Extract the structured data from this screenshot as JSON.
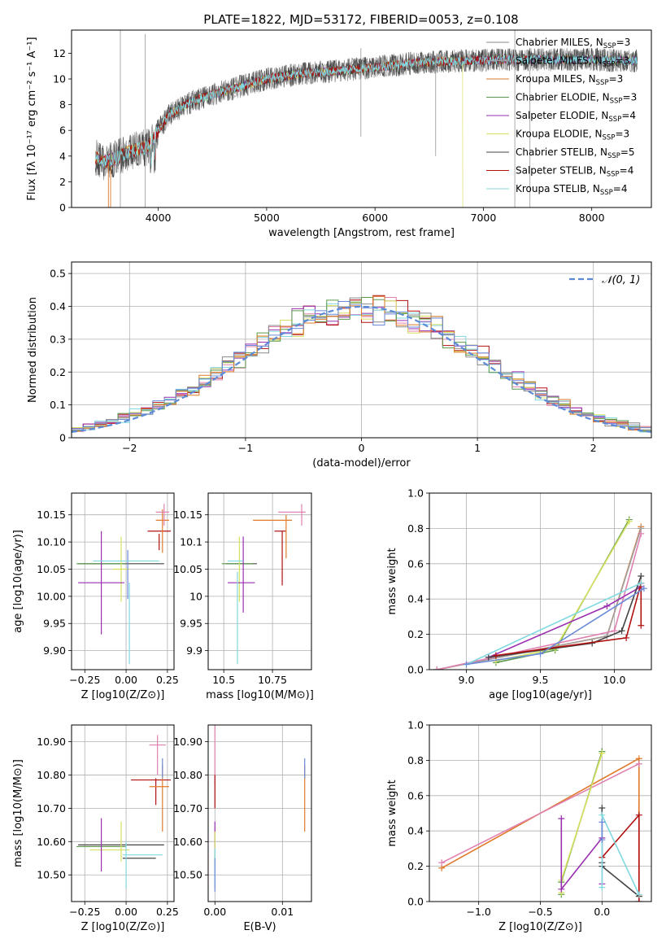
{
  "figure": {
    "title": "PLATE=1822, MJD=53172, FIBERID=0053, z=0.108"
  },
  "legend_ssp": [
    {
      "label": "Chabrier MILES, N",
      "sub": "SSP",
      "tail": "=3",
      "color": "#888888"
    },
    {
      "label": "Salpeter MILES, N",
      "sub": "SSP",
      "tail": "=3",
      "color": "#a0a0a0"
    },
    {
      "label": "Kroupa MILES, N",
      "sub": "SSP",
      "tail": "=3",
      "color": "#e07a2a"
    },
    {
      "label": "Chabrier ELODIE, N",
      "sub": "SSP",
      "tail": "=3",
      "color": "#5a9a4a"
    },
    {
      "label": "Salpeter ELODIE, N",
      "sub": "SSP",
      "tail": "=4",
      "color": "#9a2fb0"
    },
    {
      "label": "Kroupa ELODIE, N",
      "sub": "SSP",
      "tail": "=3",
      "color": "#d8e060"
    },
    {
      "label": "Chabrier STELIB, N",
      "sub": "SSP",
      "tail": "=5",
      "color": "#444444"
    },
    {
      "label": "Salpeter STELIB, N",
      "sub": "SSP",
      "tail": "=4",
      "color": "#b01010"
    },
    {
      "label": "Kroupa STELIB, N",
      "sub": "SSP",
      "tail": "=4",
      "color": "#80d8e0"
    }
  ],
  "chart_data": [
    {
      "id": "spectrum",
      "type": "line",
      "xlabel": "wavelength [Angstrom, rest frame]",
      "ylabel": "Flux [fλ 10⁻¹⁷ erg cm⁻² s⁻¹ A⁻¹]",
      "xlim": [
        3200,
        8550
      ],
      "ylim": [
        0,
        13.8
      ],
      "xticks": [
        4000,
        5000,
        6000,
        7000,
        8000
      ],
      "yticks": [
        0,
        2,
        4,
        6,
        8,
        10,
        12
      ],
      "continuum_x": [
        3420,
        3500,
        3600,
        3700,
        3800,
        3900,
        4000,
        4100,
        4300,
        4500,
        4800,
        5000,
        5300,
        5600,
        6000,
        6400,
        6800,
        7200,
        7600,
        8000,
        8400
      ],
      "continuum_y": [
        3.9,
        3.5,
        3.8,
        4.2,
        4.5,
        4.7,
        6.0,
        7.2,
        8.2,
        8.8,
        9.5,
        10.0,
        10.4,
        10.6,
        10.9,
        11.3,
        11.4,
        11.5,
        11.5,
        11.5,
        11.4
      ]
    },
    {
      "id": "residuals",
      "type": "histogram",
      "xlabel": "(data-model)/error",
      "ylabel": "Normed distribution",
      "xlim": [
        -2.5,
        2.5
      ],
      "ylim": [
        0,
        0.535
      ],
      "xticks": [
        -2,
        -1,
        0,
        1,
        2
      ],
      "yticks": [
        0.0,
        0.1,
        0.2,
        0.3,
        0.4,
        0.5
      ],
      "legend": "𝒩(0, 1)",
      "bin_width": 0.1
    },
    {
      "id": "age_vs_Z",
      "type": "errorbar",
      "xlabel": "Z [log10(Z/Z⊙)]",
      "ylabel": "age  [log10(age/yr)]",
      "xlim": [
        -0.33,
        0.29
      ],
      "ylim": [
        9.865,
        10.19
      ],
      "xticks": [
        -0.25,
        0.0,
        0.25
      ],
      "yticks": [
        9.9,
        9.95,
        10.0,
        10.05,
        10.1,
        10.15
      ],
      "points": [
        {
          "x": -0.03,
          "xerr": 0.26,
          "y": 10.06,
          "yerr": 0.0,
          "c": "#444444"
        },
        {
          "x": -0.15,
          "xerr": 0.15,
          "y": 10.06,
          "yerr": 0.0,
          "c": "#5a9a4a"
        },
        {
          "x": -0.03,
          "xerr": 0.05,
          "y": 10.05,
          "yerr": 0.06,
          "c": "#d8e060"
        },
        {
          "x": -0.15,
          "xerr": 0.14,
          "y": 10.025,
          "yerr": 0.095,
          "c": "#9a2fb0"
        },
        {
          "x": 0.01,
          "xerr": 0.0,
          "y": 10.04,
          "yerr": 0.045,
          "c": "#6a8ad8"
        },
        {
          "x": 0.02,
          "xerr": 0.0,
          "y": 9.95,
          "yerr": 0.075,
          "c": "#80d8e0"
        },
        {
          "x": 0.0,
          "xerr": 0.2,
          "y": 10.065,
          "yerr": 0.0,
          "c": "#80d8e0"
        },
        {
          "x": 0.2,
          "xerr": 0.07,
          "y": 10.12,
          "yerr": 0.0,
          "c": "#b01010"
        },
        {
          "x": 0.2,
          "xerr": 0.0,
          "y": 10.1,
          "yerr": 0.015,
          "c": "#b01010"
        },
        {
          "x": 0.22,
          "xerr": 0.04,
          "y": 10.14,
          "yerr": 0.0,
          "c": "#e07a2a"
        },
        {
          "x": 0.22,
          "xerr": 0.0,
          "y": 10.12,
          "yerr": 0.04,
          "c": "#e07a2a"
        },
        {
          "x": 0.22,
          "xerr": 0.04,
          "y": 10.155,
          "yerr": 0.0,
          "c": "#e080b0"
        },
        {
          "x": 0.23,
          "xerr": 0.0,
          "y": 10.15,
          "yerr": 0.02,
          "c": "#e080b0"
        }
      ]
    },
    {
      "id": "age_vs_mass",
      "type": "errorbar",
      "xlabel": "mass [log10(M/M⊙)]",
      "ylabel": "",
      "xlim": [
        10.42,
        10.95
      ],
      "ylim": [
        9.865,
        10.19
      ],
      "xticks": [
        10.5,
        10.75
      ],
      "yticks": [
        9.9,
        9.95,
        10.0,
        10.05,
        10.1,
        10.15
      ],
      "points": [
        {
          "x": 10.59,
          "xerr": 0.08,
          "y": 10.06,
          "yerr": 0.0,
          "c": "#444444"
        },
        {
          "x": 10.57,
          "xerr": 0.08,
          "y": 10.06,
          "yerr": 0.0,
          "c": "#5a9a4a"
        },
        {
          "x": 10.58,
          "xerr": 0.0,
          "y": 10.05,
          "yerr": 0.06,
          "c": "#d8e060"
        },
        {
          "x": 10.59,
          "xerr": 0.07,
          "y": 10.025,
          "yerr": 0.0,
          "c": "#9a2fb0"
        },
        {
          "x": 10.6,
          "xerr": 0.0,
          "y": 10.04,
          "yerr": 0.07,
          "c": "#9a2fb0"
        },
        {
          "x": 10.57,
          "xerr": 0.0,
          "y": 9.96,
          "yerr": 0.085,
          "c": "#80d8e0"
        },
        {
          "x": 10.56,
          "xerr": 0.04,
          "y": 10.065,
          "yerr": 0.0,
          "c": "#80d8e0"
        },
        {
          "x": 10.79,
          "xerr": 0.03,
          "y": 10.12,
          "yerr": 0.0,
          "c": "#b01010"
        },
        {
          "x": 10.8,
          "xerr": 0.0,
          "y": 10.07,
          "yerr": 0.05,
          "c": "#b01010"
        },
        {
          "x": 10.75,
          "xerr": 0.1,
          "y": 10.14,
          "yerr": 0.0,
          "c": "#e07a2a"
        },
        {
          "x": 10.82,
          "xerr": 0.0,
          "y": 10.11,
          "yerr": 0.04,
          "c": "#e07a2a"
        },
        {
          "x": 10.85,
          "xerr": 0.07,
          "y": 10.155,
          "yerr": 0.0,
          "c": "#e080b0"
        },
        {
          "x": 10.9,
          "xerr": 0.0,
          "y": 10.15,
          "yerr": 0.02,
          "c": "#e080b0"
        }
      ]
    },
    {
      "id": "weight_vs_age",
      "type": "line",
      "xlabel": "age  [log10(age/yr)]",
      "ylabel": "mass weight",
      "xlim": [
        8.75,
        10.25
      ],
      "ylim": [
        0,
        1.0
      ],
      "xticks": [
        9.0,
        9.5,
        10.0
      ],
      "yticks": [
        0.0,
        0.2,
        0.4,
        0.6,
        0.8,
        1.0
      ],
      "series": [
        {
          "c": "#5a9a4a",
          "x": [
            9.2,
            9.6,
            10.1
          ],
          "y": [
            0.04,
            0.11,
            0.85
          ]
        },
        {
          "c": "#d8e060",
          "x": [
            9.2,
            9.6,
            10.1
          ],
          "y": [
            0.05,
            0.12,
            0.84
          ]
        },
        {
          "c": "#e07a2a",
          "x": [
            8.8,
            9.95,
            10.18
          ],
          "y": [
            0.0,
            0.19,
            0.81
          ]
        },
        {
          "c": "#a0a0a0",
          "x": [
            8.8,
            9.95,
            10.18
          ],
          "y": [
            0.0,
            0.19,
            0.8
          ]
        },
        {
          "c": "#e080b0",
          "x": [
            8.8,
            10.0,
            10.18
          ],
          "y": [
            0.0,
            0.22,
            0.77
          ]
        },
        {
          "c": "#9a2fb0",
          "x": [
            9.15,
            9.95,
            10.18
          ],
          "y": [
            0.07,
            0.36,
            0.47
          ]
        },
        {
          "c": "#444444",
          "x": [
            9.15,
            9.85,
            10.05,
            10.18
          ],
          "y": [
            0.07,
            0.15,
            0.22,
            0.53
          ]
        },
        {
          "c": "#b01010",
          "x": [
            9.2,
            10.08,
            10.18,
            10.18
          ],
          "y": [
            0.08,
            0.18,
            0.49,
            0.25
          ]
        },
        {
          "c": "#80d8e0",
          "x": [
            9.0,
            10.18
          ],
          "y": [
            0.03,
            0.49
          ]
        },
        {
          "c": "#6a8ad8",
          "x": [
            9.0,
            9.5,
            10.2
          ],
          "y": [
            0.03,
            0.09,
            0.46
          ]
        }
      ]
    },
    {
      "id": "mass_vs_Z",
      "type": "errorbar",
      "xlabel": "Z [log10(Z/Z⊙)]",
      "ylabel": "mass [log10(M/M⊙)]",
      "xlim": [
        -0.33,
        0.29
      ],
      "ylim": [
        10.42,
        10.95
      ],
      "xticks": [
        -0.25,
        0.0,
        0.25
      ],
      "yticks": [
        10.5,
        10.6,
        10.7,
        10.8,
        10.9
      ],
      "points": [
        {
          "x": -0.03,
          "xerr": 0.26,
          "y": 10.59,
          "yerr": 0.0,
          "c": "#444444"
        },
        {
          "x": -0.15,
          "xerr": 0.15,
          "y": 10.585,
          "yerr": 0.0,
          "c": "#5a9a4a"
        },
        {
          "x": -0.03,
          "xerr": 0.0,
          "y": 10.6,
          "yerr": 0.06,
          "c": "#d8e060"
        },
        {
          "x": -0.1,
          "xerr": 0.12,
          "y": 10.575,
          "yerr": 0.0,
          "c": "#d8e060"
        },
        {
          "x": -0.15,
          "xerr": 0.0,
          "y": 10.59,
          "yerr": 0.08,
          "c": "#9a2fb0"
        },
        {
          "x": 0.08,
          "xerr": 0.1,
          "y": 10.55,
          "yerr": 0.0,
          "c": "#444444"
        },
        {
          "x": 0.0,
          "xerr": 0.0,
          "y": 10.53,
          "yerr": 0.07,
          "c": "#80d8e0"
        },
        {
          "x": 0.1,
          "xerr": 0.12,
          "y": 10.56,
          "yerr": 0.0,
          "c": "#80d8e0"
        },
        {
          "x": 0.15,
          "xerr": 0.12,
          "y": 10.785,
          "yerr": 0.0,
          "c": "#b01010"
        },
        {
          "x": 0.18,
          "xerr": 0.0,
          "y": 10.75,
          "yerr": 0.04,
          "c": "#b01010"
        },
        {
          "x": 0.2,
          "xerr": 0.06,
          "y": 10.765,
          "yerr": 0.0,
          "c": "#e07a2a"
        },
        {
          "x": 0.22,
          "xerr": 0.0,
          "y": 10.73,
          "yerr": 0.1,
          "c": "#e07a2a"
        },
        {
          "x": 0.19,
          "xerr": 0.05,
          "y": 10.89,
          "yerr": 0.0,
          "c": "#e080b0"
        },
        {
          "x": 0.19,
          "xerr": 0.0,
          "y": 10.86,
          "yerr": 0.06,
          "c": "#e080b0"
        },
        {
          "x": 0.22,
          "xerr": 0.0,
          "y": 10.82,
          "yerr": 0.03,
          "c": "#6a8ad8"
        }
      ]
    },
    {
      "id": "mass_vs_EBV",
      "type": "errorbar",
      "xlabel": "E(B-V)",
      "ylabel": "",
      "xlim": [
        -0.001,
        0.0143
      ],
      "ylim": [
        10.42,
        10.95
      ],
      "xticks": [
        0.0,
        0.01
      ],
      "yticks": [
        10.5,
        10.6,
        10.7,
        10.8,
        10.9
      ],
      "points": [
        {
          "x": 0.0,
          "xerr": 0.0,
          "y": 10.86,
          "yerr": 0.09,
          "c": "#e080b0"
        },
        {
          "x": 0.0,
          "xerr": 0.0,
          "y": 10.75,
          "yerr": 0.05,
          "c": "#b01010"
        },
        {
          "x": 0.0,
          "xerr": 0.0,
          "y": 10.6,
          "yerr": 0.06,
          "c": "#9a2fb0"
        },
        {
          "x": 0.0,
          "xerr": 0.0,
          "y": 10.58,
          "yerr": 0.05,
          "c": "#d8e060"
        },
        {
          "x": 0.0,
          "xerr": 0.0,
          "y": 10.52,
          "yerr": 0.06,
          "c": "#80d8e0"
        },
        {
          "x": 0.0,
          "xerr": 0.0,
          "y": 10.5,
          "yerr": 0.05,
          "c": "#6a8ad8"
        },
        {
          "x": 0.0133,
          "xerr": 0.0,
          "y": 10.73,
          "yerr": 0.1,
          "c": "#e07a2a"
        },
        {
          "x": 0.0133,
          "xerr": 0.0,
          "y": 10.82,
          "yerr": 0.03,
          "c": "#6a8ad8"
        }
      ]
    },
    {
      "id": "weight_vs_Z",
      "type": "line",
      "xlabel": "Z [log10(Z/Z⊙)]",
      "ylabel": "mass weight",
      "xlim": [
        -1.4,
        0.4
      ],
      "ylim": [
        0,
        1.0
      ],
      "xticks": [
        -1.0,
        -0.5,
        0.0
      ],
      "yticks": [
        0.0,
        0.2,
        0.4,
        0.6,
        0.8,
        1.0
      ],
      "series": [
        {
          "c": "#e07a2a",
          "x": [
            -1.3,
            0.3,
            0.3
          ],
          "y": [
            0.19,
            0.81,
            0.03
          ]
        },
        {
          "c": "#e080b0",
          "x": [
            -1.3,
            0.3
          ],
          "y": [
            0.22,
            0.78
          ]
        },
        {
          "c": "#5a9a4a",
          "x": [
            -0.33,
            -0.33,
            0.0,
            0.0
          ],
          "y": [
            0.04,
            0.11,
            0.85,
            0.85
          ]
        },
        {
          "c": "#d8e060",
          "x": [
            -0.33,
            -0.33,
            0.0
          ],
          "y": [
            0.05,
            0.12,
            0.84
          ]
        },
        {
          "c": "#9a2fb0",
          "x": [
            -0.33,
            -0.33,
            0.0,
            0.0
          ],
          "y": [
            0.47,
            0.07,
            0.36,
            0.1
          ]
        },
        {
          "c": "#444444",
          "x": [
            0.0,
            0.0,
            0.0,
            0.3
          ],
          "y": [
            0.53,
            0.22,
            0.2,
            0.03
          ]
        },
        {
          "c": "#b01010",
          "x": [
            0.0,
            0.3,
            0.3
          ],
          "y": [
            0.25,
            0.49,
            0.0
          ]
        },
        {
          "c": "#80d8e0",
          "x": [
            0.0,
            0.0,
            0.3
          ],
          "y": [
            0.08,
            0.49,
            0.04
          ]
        },
        {
          "c": "#6a8ad8",
          "x": [
            0.0,
            0.0
          ],
          "y": [
            0.35,
            0.45
          ]
        }
      ]
    }
  ]
}
